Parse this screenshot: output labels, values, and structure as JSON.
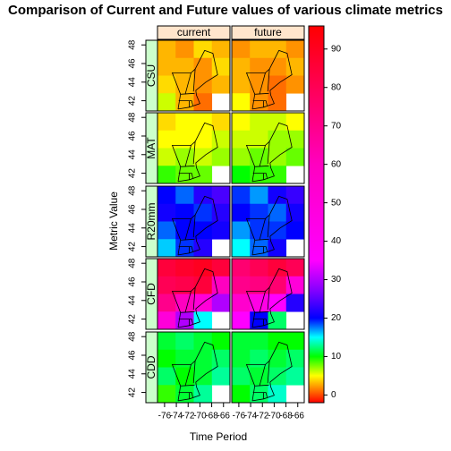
{
  "chart_data": {
    "type": "levelplot",
    "title": "Comparison of Current and Future values of various climate metrics",
    "xlabel": "Time Period",
    "ylabel": "Metric Value",
    "columns": [
      "current",
      "future"
    ],
    "rows": [
      "CSU",
      "MAT",
      "R20mm",
      "CFD",
      "CDD"
    ],
    "xlim": [
      -77.2,
      -64.9
    ],
    "xticks": [
      -76,
      -74,
      -72,
      -70,
      -68,
      -66
    ],
    "ylim": [
      40.9,
      48.5
    ],
    "yticks": [
      42,
      44,
      46,
      48
    ],
    "zlim": [
      -2,
      96
    ],
    "zticks": [
      0,
      10,
      20,
      30,
      40,
      50,
      60,
      70,
      80,
      90
    ],
    "colorscale": [
      [
        -2,
        "#ff0000"
      ],
      [
        5,
        "#ffff00"
      ],
      [
        10,
        "#00ff00"
      ],
      [
        15,
        "#00ffff"
      ],
      [
        20,
        "#0000ff"
      ],
      [
        27,
        "#8000ff"
      ],
      [
        35,
        "#ff00ff"
      ],
      [
        60,
        "#ff00c0"
      ],
      [
        96,
        "#ff0000"
      ]
    ],
    "panels": [
      {
        "cells": [
          [
            3,
            2,
            4,
            3
          ],
          [
            3,
            3,
            2,
            4
          ],
          [
            4,
            3,
            2,
            3
          ],
          [
            6,
            3,
            1,
            null
          ]
        ]
      },
      {
        "cells": [
          [
            2,
            3,
            3,
            2
          ],
          [
            3,
            2,
            2,
            3
          ],
          [
            3,
            2,
            1,
            2
          ],
          [
            5,
            2,
            1,
            null
          ]
        ]
      },
      {
        "cells": [
          [
            4,
            5,
            5,
            4
          ],
          [
            5,
            5,
            5,
            6
          ],
          [
            6,
            7,
            6,
            7
          ],
          [
            9,
            8,
            8,
            null
          ]
        ]
      },
      {
        "cells": [
          [
            5,
            6,
            6,
            5
          ],
          [
            6,
            6,
            7,
            7
          ],
          [
            7,
            8,
            7,
            8
          ],
          [
            10,
            9,
            9,
            null
          ]
        ]
      },
      {
        "cells": [
          [
            20,
            18,
            22,
            24
          ],
          [
            21,
            20,
            19,
            22
          ],
          [
            18,
            20,
            20,
            21
          ],
          [
            16,
            19,
            22,
            null
          ]
        ]
      },
      {
        "cells": [
          [
            19,
            17,
            21,
            23
          ],
          [
            20,
            19,
            18,
            21
          ],
          [
            17,
            19,
            19,
            20
          ],
          [
            15,
            18,
            21,
            null
          ]
        ]
      },
      {
        "cells": [
          [
            85,
            88,
            90,
            85
          ],
          [
            80,
            82,
            85,
            60
          ],
          [
            70,
            60,
            50,
            30
          ],
          [
            50,
            30,
            15,
            null
          ]
        ]
      },
      {
        "cells": [
          [
            75,
            80,
            85,
            80
          ],
          [
            70,
            72,
            75,
            50
          ],
          [
            55,
            45,
            35,
            22
          ],
          [
            35,
            20,
            12,
            null
          ]
        ]
      },
      {
        "cells": [
          [
            11,
            12,
            11,
            10
          ],
          [
            10,
            11,
            11,
            12
          ],
          [
            12,
            10,
            11,
            13
          ],
          [
            9,
            11,
            13,
            null
          ]
        ]
      },
      {
        "cells": [
          [
            11,
            11,
            10,
            10
          ],
          [
            11,
            12,
            11,
            12
          ],
          [
            12,
            11,
            12,
            13
          ],
          [
            10,
            12,
            14,
            null
          ]
        ]
      }
    ]
  }
}
